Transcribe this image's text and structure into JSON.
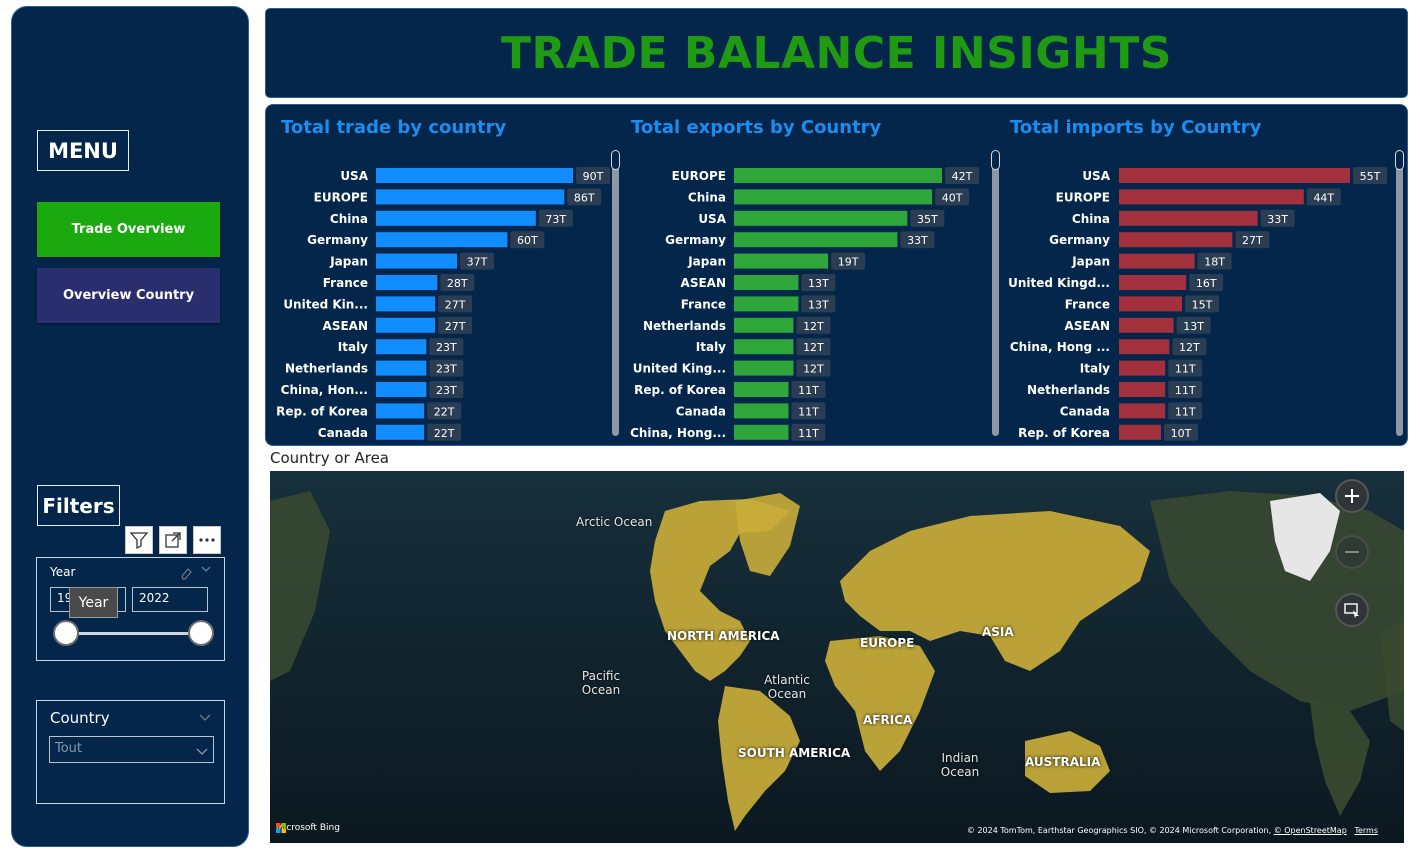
{
  "header": {
    "title": "TRADE BALANCE INSIGHTS"
  },
  "sidebar": {
    "menu_label": "MENU",
    "nav": [
      {
        "label": "Trade Overview"
      },
      {
        "label": "Overview Country"
      }
    ],
    "filters_label": "Filters",
    "year_filter": {
      "label": "Year",
      "from_value": "19",
      "to_value": "2022",
      "tooltip": "Year",
      "slider_from_pct": 0,
      "slider_to_pct": 100
    },
    "country_filter": {
      "label": "Country",
      "selected": "Tout"
    }
  },
  "chart_data": [
    {
      "type": "bar",
      "orientation": "horizontal",
      "title": "Total trade by country",
      "color": "#118dff",
      "categories": [
        "USA",
        "EUROPE",
        "China",
        "Germany",
        "Japan",
        "France",
        "United Kin...",
        "ASEAN",
        "Italy",
        "Netherlands",
        "China, Hon...",
        "Rep. of Korea",
        "Canada"
      ],
      "values": [
        90,
        86,
        73,
        60,
        37,
        28,
        27,
        27,
        23,
        23,
        23,
        22,
        22
      ],
      "labels": [
        "90T",
        "86T",
        "73T",
        "60T",
        "37T",
        "28T",
        "27T",
        "27T",
        "23T",
        "23T",
        "23T",
        "22T",
        "22T"
      ],
      "xlim": [
        0,
        90
      ]
    },
    {
      "type": "bar",
      "orientation": "horizontal",
      "title": "Total exports by Country",
      "color": "#2ea63a",
      "categories": [
        "EUROPE",
        "China",
        "USA",
        "Germany",
        "Japan",
        "ASEAN",
        "France",
        "Netherlands",
        "Italy",
        "United King...",
        "Rep. of Korea",
        "Canada",
        "China, Hong..."
      ],
      "values": [
        42,
        40,
        35,
        33,
        19,
        13,
        13,
        12,
        12,
        12,
        11,
        11,
        11
      ],
      "labels": [
        "42T",
        "40T",
        "35T",
        "33T",
        "19T",
        "13T",
        "13T",
        "12T",
        "12T",
        "12T",
        "11T",
        "11T",
        "11T"
      ],
      "xlim": [
        0,
        42
      ]
    },
    {
      "type": "bar",
      "orientation": "horizontal",
      "title": "Total imports by Country",
      "color": "#a3313d",
      "categories": [
        "USA",
        "EUROPE",
        "China",
        "Germany",
        "Japan",
        "United Kingd...",
        "France",
        "ASEAN",
        "China, Hong ...",
        "Italy",
        "Netherlands",
        "Canada",
        "Rep. of Korea"
      ],
      "values": [
        55,
        44,
        33,
        27,
        18,
        16,
        15,
        13,
        12,
        11,
        11,
        11,
        10
      ],
      "labels": [
        "55T",
        "44T",
        "33T",
        "27T",
        "18T",
        "16T",
        "15T",
        "13T",
        "12T",
        "11T",
        "11T",
        "11T",
        "10T"
      ],
      "xlim": [
        0,
        55
      ]
    }
  ],
  "map": {
    "title": "Country or Area",
    "ocean_labels": [
      "Arctic Ocean",
      "Pacific Ocean",
      "Atlantic Ocean",
      "Indian Ocean"
    ],
    "continent_labels": [
      "NORTH AMERICA",
      "EUROPE",
      "ASIA",
      "AFRICA",
      "SOUTH AMERICA",
      "AUSTRALIA"
    ],
    "bing_label": "Microsoft Bing",
    "copyright": "© 2024 TomTom, Earthstar Geographics SIO, © 2024 Microsoft Corporation,",
    "osm_link": "© OpenStreetMap",
    "terms_link": "Terms",
    "highlight_color": "#c9ad3a"
  }
}
